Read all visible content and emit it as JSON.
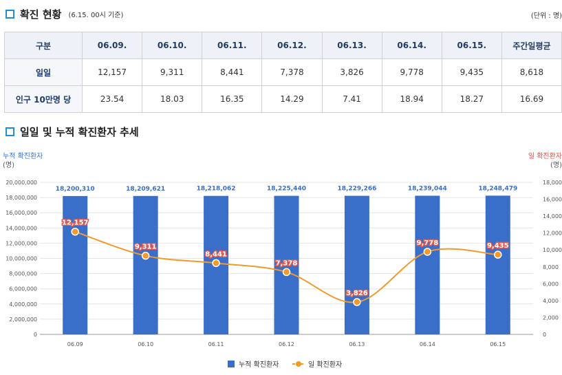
{
  "section1": {
    "title": "확진 현황",
    "subtitle": "(6.15. 00시 기준)",
    "unit": "(단위 : 명)"
  },
  "table": {
    "headers": [
      "구분",
      "06.09.",
      "06.10.",
      "06.11.",
      "06.12.",
      "06.13.",
      "06.14.",
      "06.15.",
      "주간일평균"
    ],
    "rows": [
      {
        "label": "일일",
        "values": [
          "12,157",
          "9,311",
          "8,441",
          "7,378",
          "3,826",
          "9,778",
          "9,435",
          "8,618"
        ]
      },
      {
        "label": "인구 10만명 당",
        "values": [
          "23.54",
          "18.03",
          "16.35",
          "14.29",
          "7.41",
          "18.94",
          "18.27",
          "16.69"
        ]
      }
    ]
  },
  "section2": {
    "title": "일일 및 누적 확진환자 추세"
  },
  "chart_data": {
    "type": "bar",
    "categories": [
      "06.09",
      "06.10",
      "06.11",
      "06.12",
      "06.13",
      "06.14",
      "06.15"
    ],
    "series": [
      {
        "name": "누적 확진환자",
        "type": "bar",
        "axis": "left",
        "color": "#3a6fc9",
        "values": [
          18200310,
          18209621,
          18218062,
          18225440,
          18229266,
          18239044,
          18248479
        ],
        "labels": [
          "18,200,310",
          "18,209,621",
          "18,218,062",
          "18,225,440",
          "18,229,266",
          "18,239,044",
          "18,248,479"
        ]
      },
      {
        "name": "일 확진환자",
        "type": "line",
        "axis": "right",
        "color": "#f39a2b",
        "values": [
          12157,
          9311,
          8441,
          7378,
          3826,
          9778,
          9435
        ],
        "labels": [
          "12,157",
          "9,311",
          "8,441",
          "7,378",
          "3,826",
          "9,778",
          "9,435"
        ]
      }
    ],
    "left_axis": {
      "title": "누적 확진환자",
      "unit": "(명)",
      "range": [
        0,
        20000000
      ],
      "ticks": [
        "0",
        "2,000,000",
        "4,000,000",
        "6,000,000",
        "8,000,000",
        "10,000,000",
        "12,000,000",
        "14,000,000",
        "16,000,000",
        "18,000,000",
        "20,000,000"
      ]
    },
    "right_axis": {
      "title": "일 확진환자",
      "unit": "(명)",
      "range": [
        0,
        18000
      ],
      "ticks": [
        "0",
        "2,000",
        "4,000",
        "6,000",
        "8,000",
        "10,000",
        "12,000",
        "14,000",
        "16,000",
        "18,000"
      ]
    },
    "legend": [
      "누적 확진환자",
      "일 확진환자"
    ],
    "legend_position": "bottom-center"
  }
}
